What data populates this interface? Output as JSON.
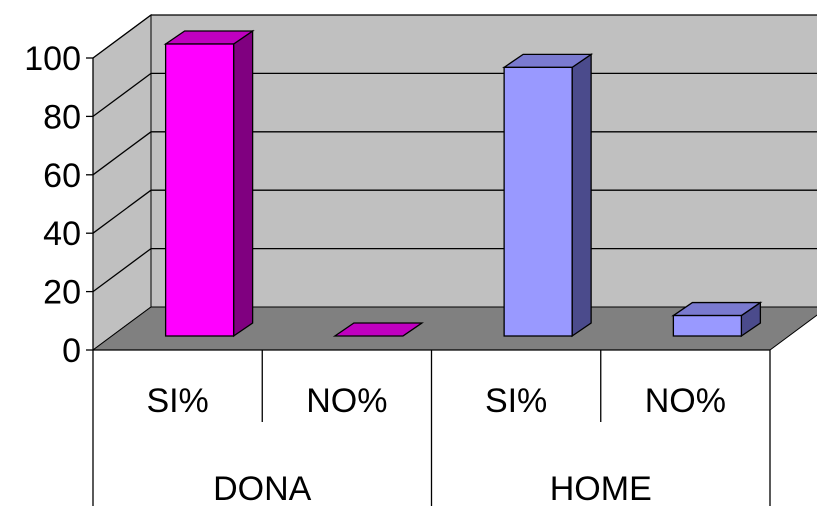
{
  "chart_data": {
    "type": "bar",
    "style": "3d-clustered-column",
    "categories": [
      "SI%",
      "NO%",
      "SI%",
      "NO%"
    ],
    "groups": [
      {
        "label": "DONA",
        "category_indices": [
          0,
          1
        ]
      },
      {
        "label": "HOME",
        "category_indices": [
          2,
          3
        ]
      }
    ],
    "values": [
      100,
      0,
      92,
      7
    ],
    "bar_colors": [
      "#FF00FF",
      "#FF00FF",
      "#9999FF",
      "#9999FF"
    ],
    "side_colors": [
      "#800080",
      "#800080",
      "#4B4B8C",
      "#4B4B8C"
    ],
    "top_colors": [
      "#C000C0",
      "#C000C0",
      "#7A7AD0",
      "#7A7AD0"
    ],
    "ylim": [
      0,
      100
    ],
    "yticks": [
      0,
      20,
      40,
      60,
      80,
      100
    ],
    "grid": true,
    "wall_color": "#C0C0C0",
    "floor_color": "#808080",
    "legend": "none",
    "title": "",
    "xlabel": "",
    "ylabel": ""
  }
}
